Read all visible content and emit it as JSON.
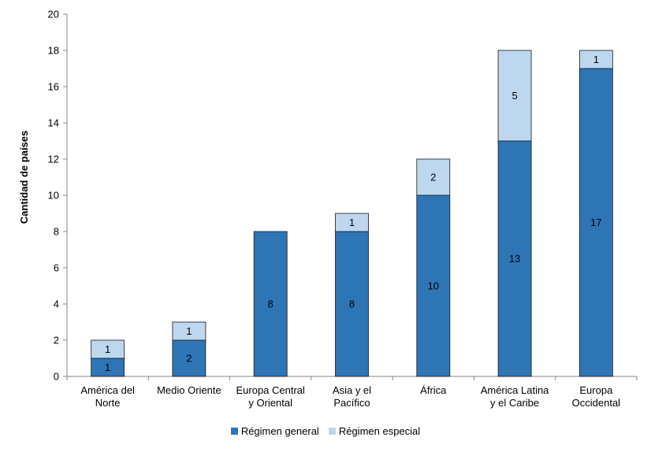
{
  "chart_data": {
    "type": "bar",
    "stacked": true,
    "categories": [
      [
        "América del",
        "Norte"
      ],
      [
        "Medio Oriente"
      ],
      [
        "Europa Central",
        "y Oriental"
      ],
      [
        "Asia y el",
        "Pacífico"
      ],
      [
        "África"
      ],
      [
        "América Latina",
        "y el Caribe"
      ],
      [
        "Europa",
        "Occidental"
      ]
    ],
    "series": [
      {
        "name": "Régimen general",
        "color": "#2e75b6",
        "values": [
          1,
          2,
          8,
          8,
          10,
          13,
          17
        ]
      },
      {
        "name": "Régimen especial",
        "color": "#bdd7ee",
        "values": [
          1,
          1,
          0,
          1,
          2,
          5,
          1
        ]
      }
    ],
    "ylabel": "Cantidad de países",
    "xlabel": "",
    "ylim": [
      0,
      20
    ],
    "yticks": [
      0,
      2,
      4,
      6,
      8,
      10,
      12,
      14,
      16,
      18,
      20
    ],
    "grid": false,
    "legend_position": "bottom"
  }
}
